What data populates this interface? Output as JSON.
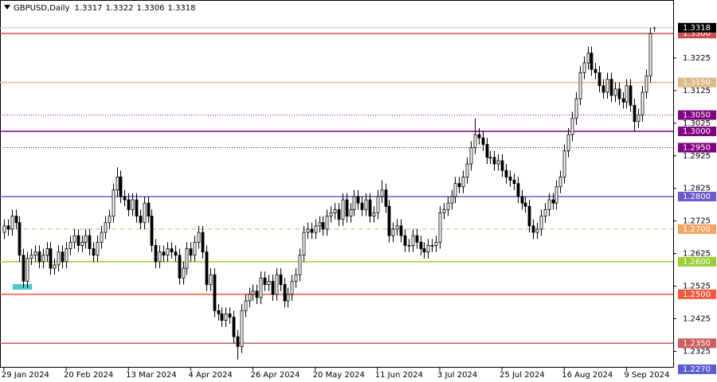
{
  "chart_data": {
    "type": "candlestick",
    "title": "GBPUSD,Daily",
    "open": [
      1.269,
      1.271,
      1.27,
      1.274,
      1.272,
      1.262,
      1.254,
      1.261,
      1.262,
      1.263,
      1.26,
      1.262,
      1.264,
      1.258,
      1.259,
      1.263,
      1.26,
      1.264,
      1.266,
      1.268,
      1.265,
      1.266,
      1.268,
      1.264,
      1.262,
      1.266,
      1.269,
      1.272,
      1.274,
      1.282,
      1.286,
      1.28,
      1.279,
      1.276,
      1.279,
      1.274,
      1.272,
      1.278,
      1.274,
      1.265,
      1.26,
      1.263,
      1.262,
      1.264,
      1.263,
      1.262,
      1.255,
      1.258,
      1.264,
      1.262,
      1.266,
      1.269,
      1.263,
      1.253,
      1.256,
      1.245,
      1.244,
      1.242,
      1.244,
      1.243,
      1.237,
      1.234,
      1.245,
      1.248,
      1.25,
      1.251,
      1.249,
      1.255,
      1.253,
      1.254,
      1.25,
      1.256,
      1.253,
      1.248,
      1.25,
      1.254,
      1.256,
      1.262,
      1.269,
      1.27,
      1.269,
      1.271,
      1.272,
      1.27,
      1.274,
      1.275,
      1.276,
      1.273,
      1.279,
      1.274,
      1.276,
      1.28,
      1.278,
      1.276,
      1.279,
      1.274,
      1.275,
      1.28,
      1.282,
      1.277,
      1.268,
      1.27,
      1.271,
      1.268,
      1.265,
      1.265,
      1.268,
      1.266,
      1.264,
      1.263,
      1.265,
      1.265,
      1.266,
      1.275,
      1.276,
      1.278,
      1.28,
      1.284,
      1.283,
      1.286,
      1.29,
      1.295,
      1.299,
      1.298,
      1.296,
      1.292,
      1.292,
      1.29,
      1.291,
      1.288,
      1.286,
      1.285,
      1.284,
      1.28,
      1.278,
      1.277,
      1.271,
      1.269,
      1.27,
      1.274,
      1.276,
      1.279,
      1.278,
      1.283,
      1.286,
      1.294,
      1.299,
      1.304,
      1.31,
      1.318,
      1.321,
      1.324,
      1.319,
      1.318,
      1.314,
      1.312,
      1.316,
      1.311,
      1.313,
      1.31,
      1.309,
      1.314,
      1.308,
      1.303,
      1.305,
      1.312,
      1.317,
      1.3317
    ],
    "high": [
      1.273,
      1.273,
      1.276,
      1.276,
      1.274,
      1.264,
      1.263,
      1.264,
      1.265,
      1.265,
      1.264,
      1.266,
      1.266,
      1.261,
      1.265,
      1.265,
      1.266,
      1.268,
      1.27,
      1.27,
      1.268,
      1.27,
      1.27,
      1.266,
      1.268,
      1.271,
      1.274,
      1.276,
      1.284,
      1.289,
      1.288,
      1.282,
      1.281,
      1.281,
      1.281,
      1.276,
      1.28,
      1.28,
      1.276,
      1.267,
      1.265,
      1.265,
      1.266,
      1.266,
      1.265,
      1.264,
      1.26,
      1.266,
      1.266,
      1.268,
      1.271,
      1.271,
      1.265,
      1.258,
      1.258,
      1.247,
      1.246,
      1.246,
      1.246,
      1.245,
      1.239,
      1.247,
      1.25,
      1.252,
      1.253,
      1.253,
      1.257,
      1.257,
      1.256,
      1.256,
      1.258,
      1.258,
      1.255,
      1.252,
      1.256,
      1.258,
      1.264,
      1.271,
      1.272,
      1.272,
      1.273,
      1.274,
      1.274,
      1.276,
      1.277,
      1.278,
      1.278,
      1.281,
      1.281,
      1.278,
      1.282,
      1.282,
      1.28,
      1.281,
      1.281,
      1.277,
      1.282,
      1.285,
      1.284,
      1.279,
      1.272,
      1.273,
      1.273,
      1.27,
      1.267,
      1.27,
      1.27,
      1.268,
      1.266,
      1.267,
      1.267,
      1.268,
      1.277,
      1.278,
      1.28,
      1.282,
      1.286,
      1.286,
      1.288,
      1.292,
      1.297,
      1.304,
      1.301,
      1.3,
      1.298,
      1.294,
      1.294,
      1.293,
      1.293,
      1.29,
      1.288,
      1.287,
      1.286,
      1.282,
      1.28,
      1.279,
      1.273,
      1.272,
      1.276,
      1.278,
      1.281,
      1.281,
      1.285,
      1.288,
      1.296,
      1.301,
      1.306,
      1.312,
      1.32,
      1.323,
      1.326,
      1.326,
      1.321,
      1.32,
      1.316,
      1.318,
      1.318,
      1.315,
      1.315,
      1.312,
      1.316,
      1.316,
      1.31,
      1.307,
      1.314,
      1.319,
      1.332,
      1.3322
    ],
    "low": [
      1.267,
      1.268,
      1.268,
      1.27,
      1.26,
      1.252,
      1.252,
      1.259,
      1.26,
      1.258,
      1.258,
      1.26,
      1.256,
      1.256,
      1.257,
      1.258,
      1.258,
      1.262,
      1.264,
      1.263,
      1.263,
      1.264,
      1.262,
      1.26,
      1.26,
      1.264,
      1.267,
      1.27,
      1.272,
      1.28,
      1.278,
      1.277,
      1.274,
      1.274,
      1.272,
      1.27,
      1.27,
      1.272,
      1.263,
      1.258,
      1.258,
      1.26,
      1.26,
      1.261,
      1.26,
      1.253,
      1.253,
      1.256,
      1.26,
      1.26,
      1.264,
      1.261,
      1.251,
      1.251,
      1.243,
      1.242,
      1.24,
      1.24,
      1.241,
      1.235,
      1.23,
      1.232,
      1.243,
      1.246,
      1.248,
      1.247,
      1.247,
      1.251,
      1.251,
      1.248,
      1.248,
      1.251,
      1.246,
      1.246,
      1.248,
      1.252,
      1.254,
      1.26,
      1.267,
      1.267,
      1.267,
      1.269,
      1.268,
      1.268,
      1.272,
      1.273,
      1.271,
      1.271,
      1.272,
      1.272,
      1.274,
      1.276,
      1.274,
      1.274,
      1.272,
      1.272,
      1.273,
      1.278,
      1.275,
      1.266,
      1.266,
      1.268,
      1.266,
      1.263,
      1.263,
      1.263,
      1.264,
      1.262,
      1.261,
      1.261,
      1.263,
      1.263,
      1.264,
      1.273,
      1.274,
      1.276,
      1.278,
      1.281,
      1.281,
      1.284,
      1.288,
      1.293,
      1.296,
      1.294,
      1.29,
      1.29,
      1.288,
      1.288,
      1.286,
      1.284,
      1.283,
      1.282,
      1.278,
      1.276,
      1.275,
      1.269,
      1.267,
      1.267,
      1.268,
      1.272,
      1.274,
      1.276,
      1.276,
      1.281,
      1.284,
      1.292,
      1.297,
      1.302,
      1.308,
      1.316,
      1.319,
      1.317,
      1.316,
      1.312,
      1.31,
      1.31,
      1.309,
      1.309,
      1.308,
      1.307,
      1.307,
      1.306,
      1.3,
      1.301,
      1.303,
      1.31,
      1.315,
      1.3306
    ],
    "close": [
      1.271,
      1.27,
      1.274,
      1.272,
      1.262,
      1.254,
      1.261,
      1.262,
      1.263,
      1.26,
      1.262,
      1.264,
      1.258,
      1.259,
      1.263,
      1.26,
      1.264,
      1.266,
      1.268,
      1.265,
      1.266,
      1.268,
      1.264,
      1.262,
      1.266,
      1.269,
      1.272,
      1.274,
      1.282,
      1.286,
      1.28,
      1.279,
      1.276,
      1.279,
      1.274,
      1.272,
      1.278,
      1.274,
      1.265,
      1.26,
      1.263,
      1.262,
      1.264,
      1.263,
      1.262,
      1.255,
      1.258,
      1.264,
      1.262,
      1.266,
      1.269,
      1.263,
      1.253,
      1.256,
      1.245,
      1.244,
      1.242,
      1.244,
      1.243,
      1.237,
      1.234,
      1.245,
      1.248,
      1.25,
      1.251,
      1.249,
      1.255,
      1.253,
      1.254,
      1.25,
      1.256,
      1.253,
      1.248,
      1.25,
      1.254,
      1.256,
      1.262,
      1.269,
      1.27,
      1.269,
      1.271,
      1.272,
      1.27,
      1.274,
      1.275,
      1.276,
      1.273,
      1.279,
      1.274,
      1.276,
      1.28,
      1.278,
      1.276,
      1.279,
      1.274,
      1.275,
      1.28,
      1.282,
      1.277,
      1.268,
      1.27,
      1.271,
      1.268,
      1.265,
      1.265,
      1.268,
      1.266,
      1.264,
      1.263,
      1.265,
      1.265,
      1.266,
      1.275,
      1.276,
      1.278,
      1.28,
      1.284,
      1.283,
      1.286,
      1.29,
      1.295,
      1.299,
      1.298,
      1.296,
      1.292,
      1.292,
      1.29,
      1.291,
      1.288,
      1.286,
      1.285,
      1.284,
      1.28,
      1.278,
      1.277,
      1.271,
      1.269,
      1.27,
      1.274,
      1.276,
      1.279,
      1.278,
      1.283,
      1.286,
      1.294,
      1.299,
      1.304,
      1.31,
      1.318,
      1.321,
      1.324,
      1.319,
      1.318,
      1.314,
      1.312,
      1.316,
      1.311,
      1.313,
      1.31,
      1.309,
      1.314,
      1.308,
      1.303,
      1.305,
      1.312,
      1.317,
      1.33,
      1.3318
    ],
    "xticks": [
      {
        "value": 0,
        "label": "29 Jan 2024"
      },
      {
        "value": 16,
        "label": "20 Feb 2024"
      },
      {
        "value": 32,
        "label": "13 Mar 2024"
      },
      {
        "value": 48,
        "label": "4 Apr 2024"
      },
      {
        "value": 64,
        "label": "26 Apr 2024"
      },
      {
        "value": 80,
        "label": "20 May 2024"
      },
      {
        "value": 96,
        "label": "11 Jun 2024"
      },
      {
        "value": 112,
        "label": "3 Jul 2024"
      },
      {
        "value": 128,
        "label": "25 Jul 2024"
      },
      {
        "value": 144,
        "label": "16 Aug 2024"
      },
      {
        "value": 160,
        "label": "9 Sep 2024"
      }
    ],
    "xlim": [
      -1,
      172
    ],
    "ylim": [
      1.2275,
      1.3403
    ],
    "yticks": [
      1.2325,
      1.2425,
      1.2525,
      1.2625,
      1.2725,
      1.2825,
      1.2925,
      1.3025,
      1.3125,
      1.3225
    ],
    "levels": [
      {
        "value": 1.33,
        "label": "1.3300",
        "color": "#c9504f",
        "style": "solid"
      },
      {
        "value": 1.315,
        "label": "1.3150",
        "color": "#deb887",
        "style": "solid"
      },
      {
        "value": 1.305,
        "label": "1.3050",
        "color": "#800080",
        "style": "dotted"
      },
      {
        "value": 1.3,
        "label": "1.3000",
        "color": "#800080",
        "style": "solid"
      },
      {
        "value": 1.295,
        "label": "1.2950",
        "color": "#800080",
        "style": "dotted"
      },
      {
        "value": 1.28,
        "label": "1.2800",
        "color": "#6a5acd",
        "style": "solid"
      },
      {
        "value": 1.27,
        "label": "1.2700",
        "color": "#f4a460",
        "style": "dashed"
      },
      {
        "value": 1.26,
        "label": "1.2600",
        "color": "#9acd32",
        "style": "solid"
      },
      {
        "value": 1.25,
        "label": "1.2500",
        "color": "#f05a3c",
        "style": "solid"
      },
      {
        "value": 1.235,
        "label": "1.2350",
        "color": "#cd5c5c",
        "style": "solid"
      },
      {
        "value": 1.227,
        "label": "1.2270",
        "color": "#5b5bd6",
        "style": "none"
      }
    ],
    "up_color": "#ffffff",
    "down_color": "#000000"
  }
}
